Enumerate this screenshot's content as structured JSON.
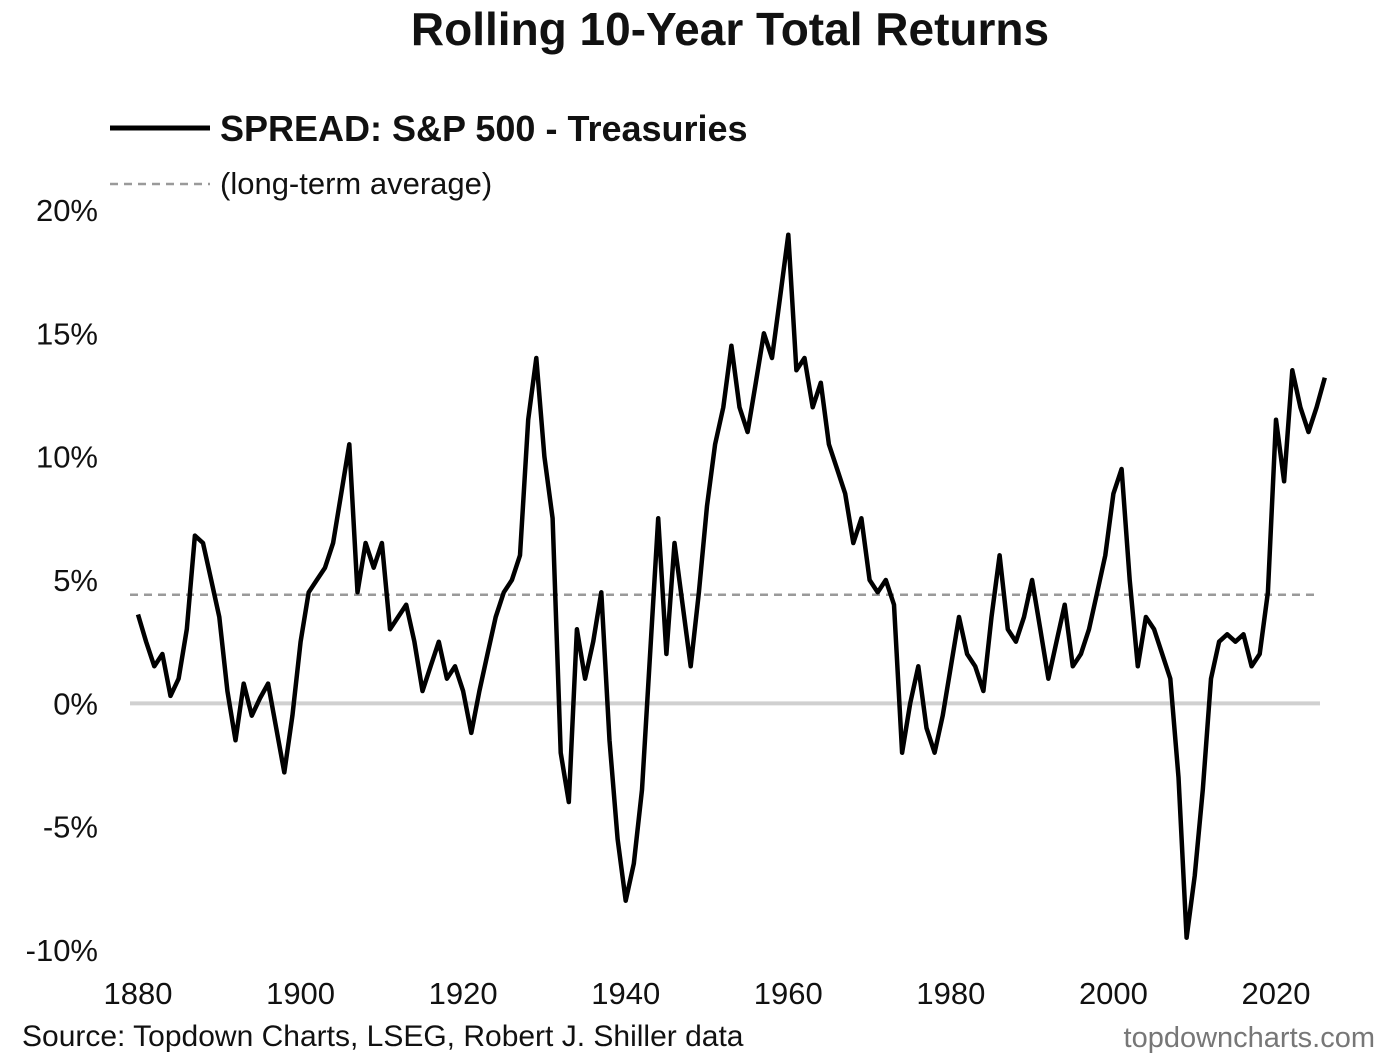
{
  "chart_data": {
    "type": "line",
    "title": "Rolling 10-Year Total Returns",
    "xlabel": "",
    "ylabel": "",
    "xlim": [
      1880,
      2026
    ],
    "ylim": [
      -10,
      20
    ],
    "y_ticks": [
      20,
      15,
      10,
      5,
      0,
      -5,
      -10
    ],
    "y_tick_labels": [
      "20%",
      "15%",
      "10%",
      "5%",
      "0%",
      "-5%",
      "-10%"
    ],
    "x_ticks": [
      1880,
      1900,
      1920,
      1940,
      1960,
      1980,
      2000,
      2020
    ],
    "x_tick_labels": [
      "1880",
      "1900",
      "1920",
      "1940",
      "1960",
      "1980",
      "2000",
      "2020"
    ],
    "grid": false,
    "legend_placement": "top-left",
    "zero_line": {
      "y": 0,
      "color": "#d0d0d0"
    },
    "reference_lines": [
      {
        "name": "(long-term average)",
        "y": 4.4,
        "style": "dashed",
        "color": "#9a9a9a"
      }
    ],
    "series": [
      {
        "name": "SPREAD: S&P 500 - Treasuries",
        "color": "#000000",
        "x": [
          1880,
          1881,
          1882,
          1883,
          1884,
          1885,
          1886,
          1887,
          1888,
          1889,
          1890,
          1891,
          1892,
          1893,
          1894,
          1895,
          1896,
          1897,
          1898,
          1899,
          1900,
          1901,
          1902,
          1903,
          1904,
          1905,
          1906,
          1907,
          1908,
          1909,
          1910,
          1911,
          1912,
          1913,
          1914,
          1915,
          1916,
          1917,
          1918,
          1919,
          1920,
          1921,
          1922,
          1923,
          1924,
          1925,
          1926,
          1927,
          1928,
          1929,
          1930,
          1931,
          1932,
          1933,
          1934,
          1935,
          1936,
          1937,
          1938,
          1939,
          1940,
          1941,
          1942,
          1943,
          1944,
          1945,
          1946,
          1947,
          1948,
          1949,
          1950,
          1951,
          1952,
          1953,
          1954,
          1955,
          1956,
          1957,
          1958,
          1959,
          1960,
          1961,
          1962,
          1963,
          1964,
          1965,
          1966,
          1967,
          1968,
          1969,
          1970,
          1971,
          1972,
          1973,
          1974,
          1975,
          1976,
          1977,
          1978,
          1979,
          1980,
          1981,
          1982,
          1983,
          1984,
          1985,
          1986,
          1987,
          1988,
          1989,
          1990,
          1991,
          1992,
          1993,
          1994,
          1995,
          1996,
          1997,
          1998,
          1999,
          2000,
          2001,
          2002,
          2003,
          2004,
          2005,
          2006,
          2007,
          2008,
          2009,
          2010,
          2011,
          2012,
          2013,
          2014,
          2015,
          2016,
          2017,
          2018,
          2019,
          2020,
          2021,
          2022,
          2023,
          2024,
          2025,
          2026
        ],
        "y": [
          3.6,
          2.5,
          1.5,
          2.0,
          0.3,
          1.0,
          3.0,
          6.8,
          6.5,
          5.0,
          3.5,
          0.5,
          -1.5,
          0.8,
          -0.5,
          0.2,
          0.8,
          -1.0,
          -2.8,
          -0.5,
          2.5,
          4.5,
          5.0,
          5.5,
          6.5,
          8.5,
          10.5,
          4.5,
          6.5,
          5.5,
          6.5,
          3.0,
          3.5,
          4.0,
          2.5,
          0.5,
          1.5,
          2.5,
          1.0,
          1.5,
          0.5,
          -1.2,
          0.5,
          2.0,
          3.5,
          4.5,
          5.0,
          6.0,
          11.5,
          14.0,
          10.0,
          7.5,
          -2.0,
          -4.0,
          3.0,
          1.0,
          2.5,
          4.5,
          -1.5,
          -5.5,
          -8.0,
          -6.5,
          -3.5,
          2.0,
          7.5,
          2.0,
          6.5,
          4.0,
          1.5,
          4.5,
          8.0,
          10.5,
          12.0,
          14.5,
          12.0,
          11.0,
          13.0,
          15.0,
          14.0,
          16.5,
          19.0,
          13.5,
          14.0,
          12.0,
          13.0,
          10.5,
          9.5,
          8.5,
          6.5,
          7.5,
          5.0,
          4.5,
          5.0,
          4.0,
          -2.0,
          0.0,
          1.5,
          -1.0,
          -2.0,
          -0.5,
          1.5,
          3.5,
          2.0,
          1.5,
          0.5,
          3.5,
          6.0,
          3.0,
          2.5,
          3.5,
          5.0,
          3.0,
          1.0,
          2.5,
          4.0,
          1.5,
          2.0,
          3.0,
          4.5,
          6.0,
          8.5,
          9.5,
          5.0,
          1.5,
          3.5,
          3.0,
          2.0,
          1.0,
          -3.0,
          -9.5,
          -7.0,
          -3.5,
          1.0,
          2.5,
          2.8,
          2.5,
          2.8,
          1.5,
          2.0,
          4.5,
          11.5,
          9.0,
          13.5,
          12.0,
          11.0,
          12.0,
          13.2
        ]
      }
    ]
  },
  "source": "Source: Topdown Charts, LSEG, Robert J. Shiller data",
  "watermark": "topdowncharts.com"
}
